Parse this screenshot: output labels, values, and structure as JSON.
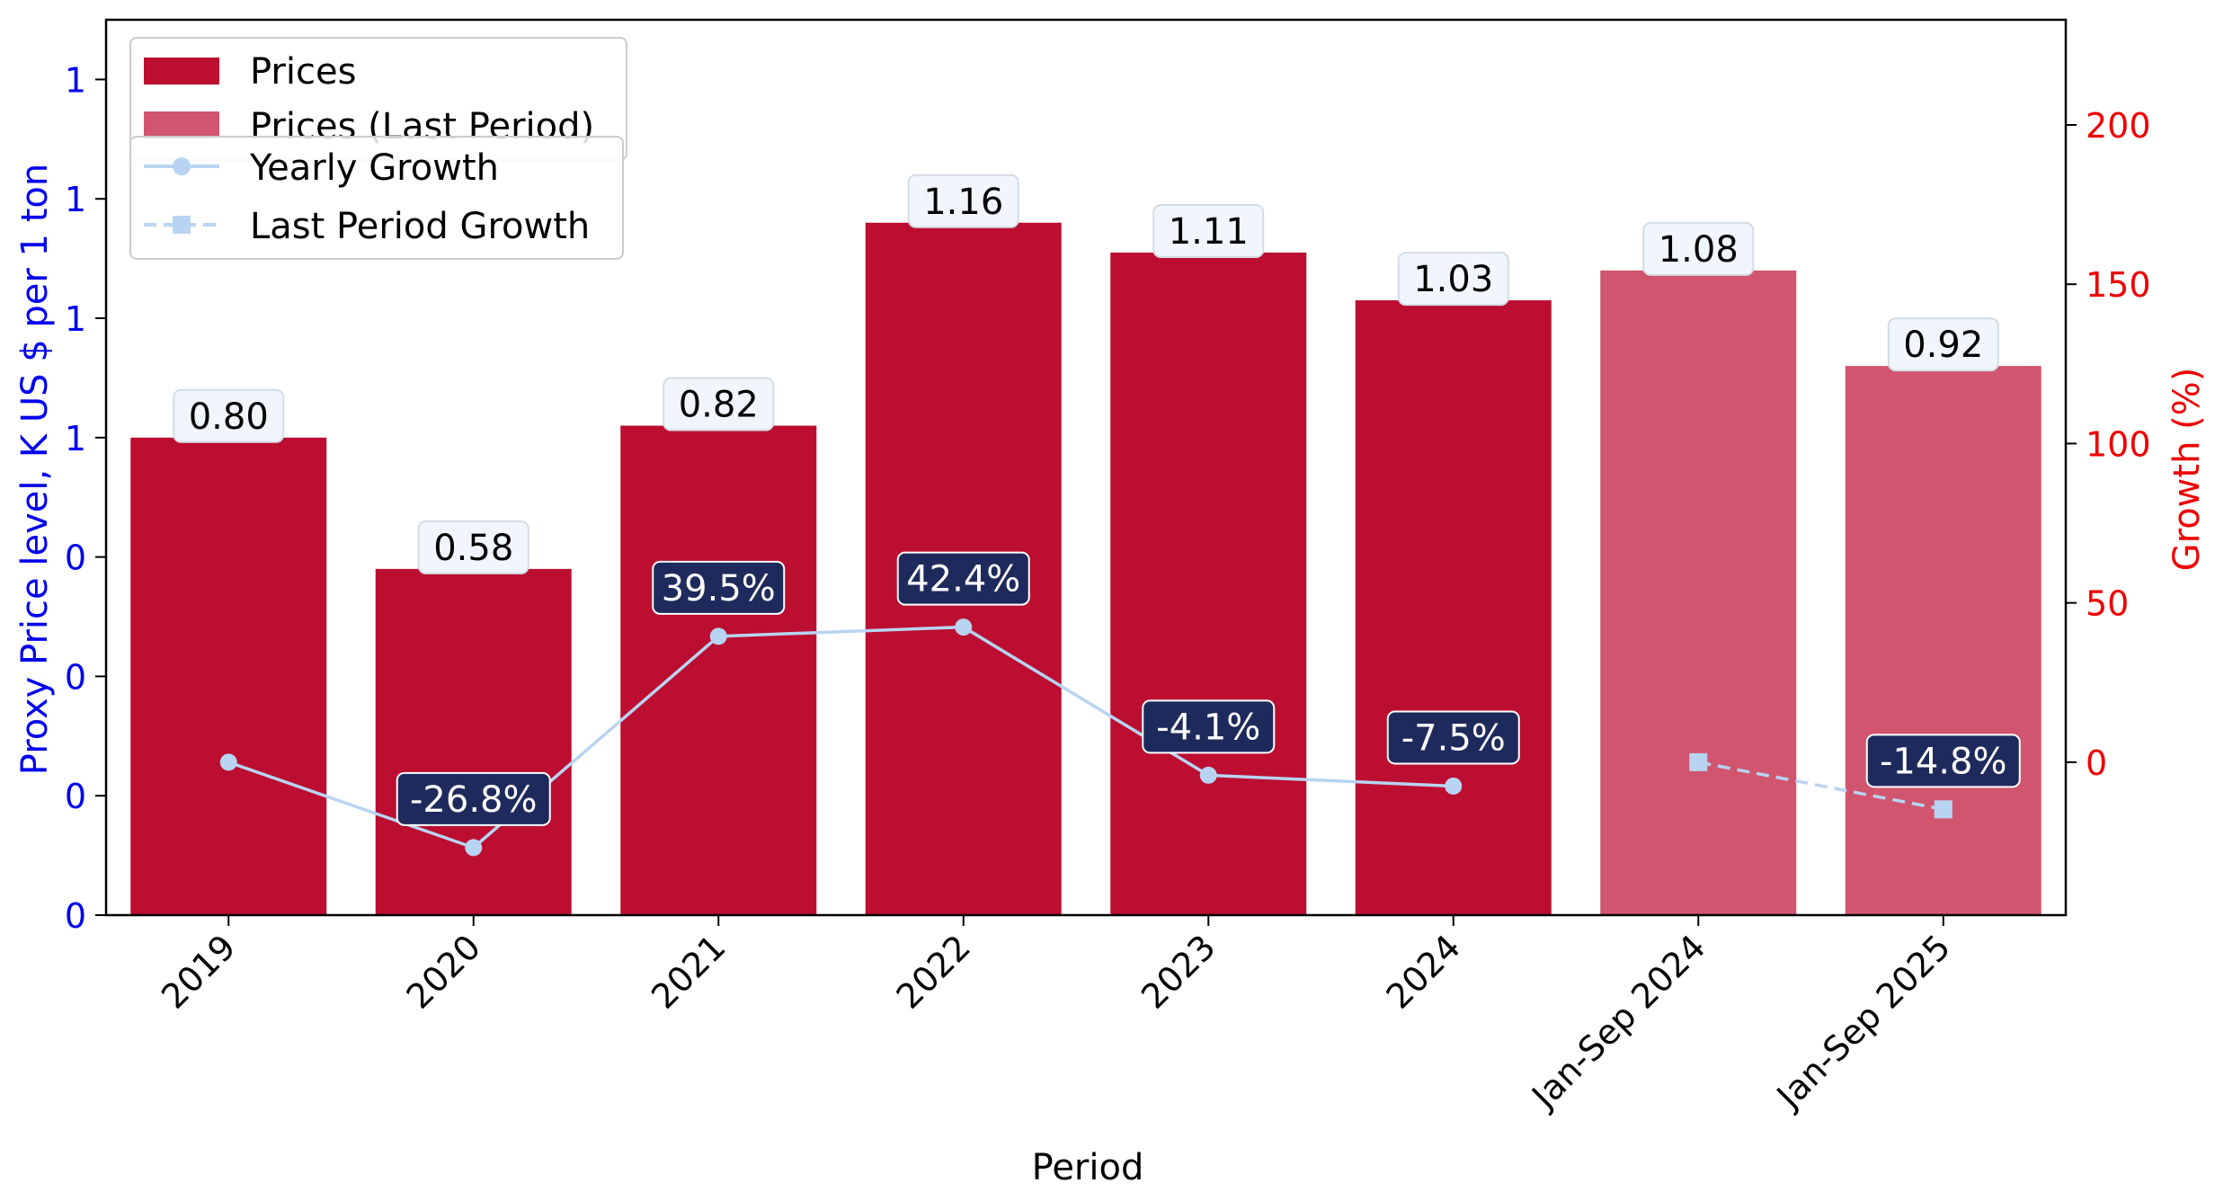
{
  "chart_data": {
    "type": "bar",
    "categories": [
      "2019",
      "2020",
      "2021",
      "2022",
      "2023",
      "2024",
      "Jan-Sep 2024",
      "Jan-Sep 2025"
    ],
    "xlabel": "Period",
    "ylabel": "Proxy Price level, K US $ per 1 ton",
    "ylabel_right": "Growth (%)",
    "ylim": [
      0,
      1.5
    ],
    "ylim_right": [
      -48,
      233
    ],
    "y_ticks": [
      0,
      0.2,
      0.4,
      0.6,
      0.8,
      1.0,
      1.2,
      1.4
    ],
    "y_tick_labels": [
      "0",
      "0",
      "0",
      "0",
      "1",
      "1",
      "1",
      "1"
    ],
    "y_right_ticks": [
      0,
      50,
      100,
      150,
      200
    ],
    "y_right_tick_labels": [
      "0",
      "50",
      "100",
      "150",
      "200"
    ],
    "series": [
      {
        "name": "Prices",
        "kind": "bar",
        "color": "#bb0e31",
        "values": [
          0.8,
          0.58,
          0.82,
          1.16,
          1.11,
          1.03,
          null,
          null
        ],
        "labels": [
          "0.80",
          "0.58",
          "0.82",
          "1.16",
          "1.11",
          "1.03",
          "",
          ""
        ]
      },
      {
        "name": "Prices (Last Period)",
        "kind": "bar",
        "color": "#d1556e",
        "values": [
          null,
          null,
          null,
          null,
          null,
          null,
          1.08,
          0.92
        ],
        "labels": [
          "",
          "",
          "",
          "",
          "",
          "",
          "1.08",
          "0.92"
        ]
      },
      {
        "name": "Yearly Growth",
        "kind": "line",
        "color": "#b8d4f2",
        "marker": "circle",
        "values": [
          0,
          -26.8,
          39.5,
          42.4,
          -4.1,
          -7.5,
          null,
          null
        ],
        "labels": [
          "",
          "-26.8%",
          "39.5%",
          "42.4%",
          "-4.1%",
          "-7.5%",
          "",
          ""
        ]
      },
      {
        "name": "Last Period Growth",
        "kind": "line",
        "color": "#b8d4f2",
        "marker": "square",
        "dashed": true,
        "values": [
          null,
          null,
          null,
          null,
          null,
          null,
          0,
          -14.8
        ],
        "labels": [
          "",
          "",
          "",
          "",
          "",
          "",
          "",
          "-14.8%"
        ]
      }
    ],
    "legend_position": "upper-left",
    "colors": {
      "left_axis": "#0000ee",
      "right_axis": "#ee0000",
      "label_box_fill": "#f0f6fb",
      "growth_box_fill": "#1f2a5c"
    }
  }
}
